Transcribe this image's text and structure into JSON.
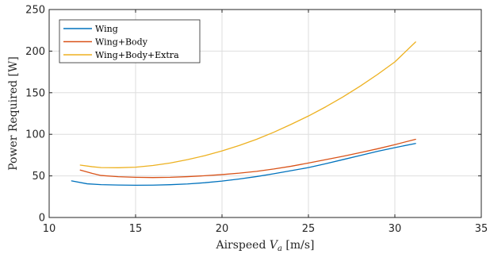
{
  "chart_data": {
    "type": "line",
    "title": "",
    "xlabel": "Airspeed V_a [m/s]",
    "xlabel_parts": {
      "prefix": "Airspeed ",
      "symbol": "V",
      "subscript": "a",
      "suffix": " [m/s]"
    },
    "ylabel": "Power Required [W]",
    "xlim": [
      10,
      35
    ],
    "ylim": [
      0,
      250
    ],
    "xticks": [
      10,
      15,
      20,
      25,
      30,
      35
    ],
    "yticks": [
      0,
      50,
      100,
      150,
      200,
      250
    ],
    "grid": true,
    "legend_position": "top-left",
    "series": [
      {
        "name": "Wing",
        "color": "#0072BD",
        "x": [
          11.3,
          12.2,
          13.0,
          14.0,
          15.0,
          16.0,
          17.0,
          18.0,
          19.0,
          20.0,
          21.0,
          22.0,
          23.0,
          24.0,
          25.0,
          26.0,
          27.0,
          28.0,
          29.0,
          30.0,
          31.2
        ],
        "y": [
          44,
          40.5,
          39.5,
          39,
          38.8,
          38.9,
          39.4,
          40.3,
          41.8,
          43.8,
          46.3,
          49.2,
          52.6,
          56.3,
          60.0,
          64.6,
          69.6,
          74.6,
          79.6,
          84.0,
          89
        ]
      },
      {
        "name": "Wing+Body",
        "color": "#D95319",
        "x": [
          11.8,
          12.5,
          13.0,
          14.0,
          15.0,
          16.0,
          17.0,
          18.0,
          19.0,
          20.0,
          21.0,
          22.0,
          23.0,
          24.0,
          25.0,
          26.0,
          27.0,
          28.0,
          29.0,
          30.0,
          31.2
        ],
        "y": [
          57,
          53,
          50.5,
          49,
          48.3,
          48,
          48.3,
          49.1,
          50.2,
          51.6,
          53.3,
          55.5,
          58.3,
          61.6,
          65.5,
          69.5,
          73.6,
          78.0,
          82.6,
          87.6,
          94
        ]
      },
      {
        "name": "Wing+Body+Extra",
        "color": "#EDB120",
        "x": [
          11.8,
          12.5,
          13.0,
          14.0,
          15.0,
          16.0,
          17.0,
          18.0,
          19.0,
          20.0,
          21.0,
          22.0,
          23.0,
          24.0,
          25.0,
          26.0,
          27.0,
          28.0,
          29.0,
          30.0,
          31.2
        ],
        "y": [
          63,
          61,
          60,
          59.8,
          60.5,
          62.5,
          65.5,
          69.5,
          74.3,
          80,
          86.6,
          94,
          102.5,
          112,
          122,
          133,
          145,
          158,
          172,
          187,
          211
        ]
      }
    ]
  }
}
